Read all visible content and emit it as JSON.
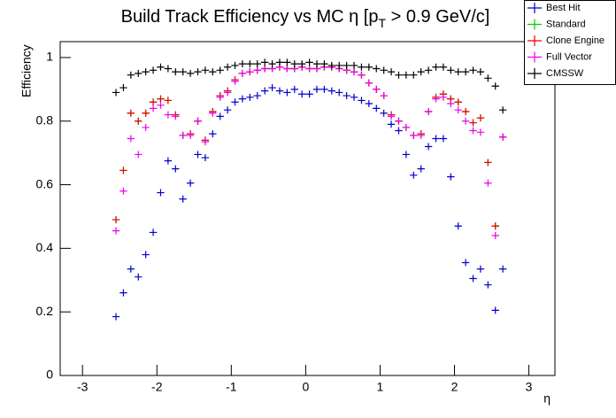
{
  "chart_data": {
    "type": "scatter",
    "title": [
      "Build Track Efficiency vs MC η [p",
      "T",
      " > 0.9 GeV/c]"
    ],
    "x_label": "η",
    "y_label": "Efficiency",
    "xlim": [
      -3.3,
      3.35
    ],
    "ylim": [
      0,
      1.05
    ],
    "xticks": [
      -3,
      -2,
      -1,
      0,
      1,
      2,
      3
    ],
    "yticks": [
      0,
      0.2,
      0.4,
      0.6,
      0.8,
      1
    ],
    "legend": "top-right",
    "x": [
      -2.55,
      -2.45,
      -2.35,
      -2.25,
      -2.15,
      -2.05,
      -1.95,
      -1.85,
      -1.75,
      -1.65,
      -1.55,
      -1.45,
      -1.35,
      -1.25,
      -1.15,
      -1.05,
      -0.95,
      -0.85,
      -0.75,
      -0.65,
      -0.55,
      -0.45,
      -0.35,
      -0.25,
      -0.15,
      -0.05,
      0.05,
      0.15,
      0.25,
      0.35,
      0.45,
      0.55,
      0.65,
      0.75,
      0.85,
      0.95,
      1.05,
      1.15,
      1.25,
      1.35,
      1.45,
      1.55,
      1.65,
      1.75,
      1.85,
      1.95,
      2.05,
      2.15,
      2.25,
      2.35,
      2.45,
      2.55,
      2.65
    ],
    "series": [
      {
        "name": "Best Hit",
        "color": "#0000cc",
        "values": [
          0.185,
          0.26,
          0.335,
          0.31,
          0.38,
          0.45,
          0.575,
          0.675,
          0.65,
          0.555,
          0.605,
          0.695,
          0.685,
          0.76,
          0.815,
          0.835,
          0.86,
          0.87,
          0.875,
          0.88,
          0.895,
          0.905,
          0.895,
          0.89,
          0.9,
          0.885,
          0.885,
          0.9,
          0.9,
          0.895,
          0.89,
          0.88,
          0.875,
          0.865,
          0.855,
          0.84,
          0.825,
          0.79,
          0.77,
          0.695,
          0.63,
          0.65,
          0.72,
          0.745,
          0.745,
          0.625,
          0.47,
          0.355,
          0.305,
          0.335,
          0.285,
          0.205,
          0.335
        ]
      },
      {
        "name": "Standard",
        "color": "#00cc00",
        "values": [
          0.49,
          0.645,
          0.825,
          0.8,
          0.825,
          0.86,
          0.87,
          0.865,
          0.82,
          0.755,
          0.76,
          0.8,
          0.74,
          0.83,
          0.88,
          0.895,
          0.93,
          0.95,
          0.955,
          0.96,
          0.965,
          0.965,
          0.97,
          0.965,
          0.965,
          0.97,
          0.965,
          0.965,
          0.97,
          0.97,
          0.965,
          0.96,
          0.955,
          0.945,
          0.92,
          0.9,
          0.88,
          0.82,
          0.8,
          0.78,
          0.755,
          0.76,
          0.83,
          0.875,
          0.885,
          0.87,
          0.86,
          0.83,
          0.795,
          0.81,
          0.67,
          0.47,
          0.75
        ]
      },
      {
        "name": "Clone Engine",
        "color": "#ee0000",
        "values": [
          0.49,
          0.645,
          0.825,
          0.8,
          0.825,
          0.86,
          0.87,
          0.865,
          0.82,
          0.755,
          0.76,
          0.8,
          0.74,
          0.83,
          0.88,
          0.895,
          0.93,
          0.95,
          0.955,
          0.96,
          0.965,
          0.965,
          0.97,
          0.965,
          0.965,
          0.97,
          0.965,
          0.965,
          0.97,
          0.97,
          0.965,
          0.96,
          0.955,
          0.945,
          0.92,
          0.9,
          0.88,
          0.82,
          0.8,
          0.78,
          0.755,
          0.76,
          0.83,
          0.875,
          0.885,
          0.87,
          0.86,
          0.83,
          0.795,
          0.81,
          0.67,
          0.47,
          0.75
        ]
      },
      {
        "name": "Full Vector",
        "color": "#ee00ee",
        "values": [
          0.455,
          0.58,
          0.745,
          0.695,
          0.78,
          0.84,
          0.85,
          0.82,
          0.815,
          0.755,
          0.755,
          0.8,
          0.735,
          0.825,
          0.875,
          0.89,
          0.925,
          0.95,
          0.955,
          0.96,
          0.965,
          0.965,
          0.97,
          0.965,
          0.965,
          0.97,
          0.965,
          0.965,
          0.97,
          0.97,
          0.965,
          0.96,
          0.955,
          0.945,
          0.92,
          0.9,
          0.88,
          0.815,
          0.8,
          0.78,
          0.755,
          0.755,
          0.83,
          0.87,
          0.875,
          0.855,
          0.835,
          0.8,
          0.77,
          0.765,
          0.605,
          0.44,
          0.75
        ]
      },
      {
        "name": "CMSSW",
        "color": "#000000",
        "values": [
          0.89,
          0.905,
          0.945,
          0.95,
          0.955,
          0.96,
          0.97,
          0.965,
          0.955,
          0.955,
          0.95,
          0.955,
          0.96,
          0.955,
          0.96,
          0.97,
          0.975,
          0.98,
          0.98,
          0.98,
          0.985,
          0.98,
          0.985,
          0.985,
          0.98,
          0.98,
          0.985,
          0.98,
          0.98,
          0.975,
          0.975,
          0.975,
          0.975,
          0.97,
          0.97,
          0.965,
          0.96,
          0.955,
          0.945,
          0.945,
          0.945,
          0.955,
          0.96,
          0.97,
          0.97,
          0.96,
          0.955,
          0.955,
          0.96,
          0.955,
          0.935,
          0.91,
          0.835
        ]
      }
    ]
  }
}
